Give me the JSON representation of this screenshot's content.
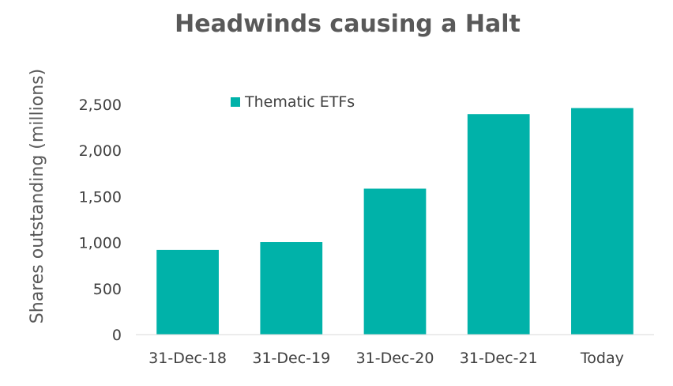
{
  "chart_data": {
    "type": "bar",
    "title": "Headwinds causing a Halt",
    "xlabel": "",
    "ylabel": "Shares outstanding (millions)",
    "categories": [
      "31-Dec-18",
      "31-Dec-19",
      "31-Dec-20",
      "31-Dec-21",
      "Today"
    ],
    "series": [
      {
        "name": "Thematic ETFs",
        "values": [
          920,
          1005,
          1585,
          2395,
          2460
        ],
        "color": "#00B2A9"
      }
    ],
    "ylim": [
      0,
      2500
    ],
    "yticks": [
      0,
      500,
      1000,
      1500,
      2000,
      2500
    ],
    "ytick_labels": [
      "0",
      "500",
      "1,000",
      "1,500",
      "2,000",
      "2,500"
    ],
    "legend_position": "top",
    "grid": false
  }
}
